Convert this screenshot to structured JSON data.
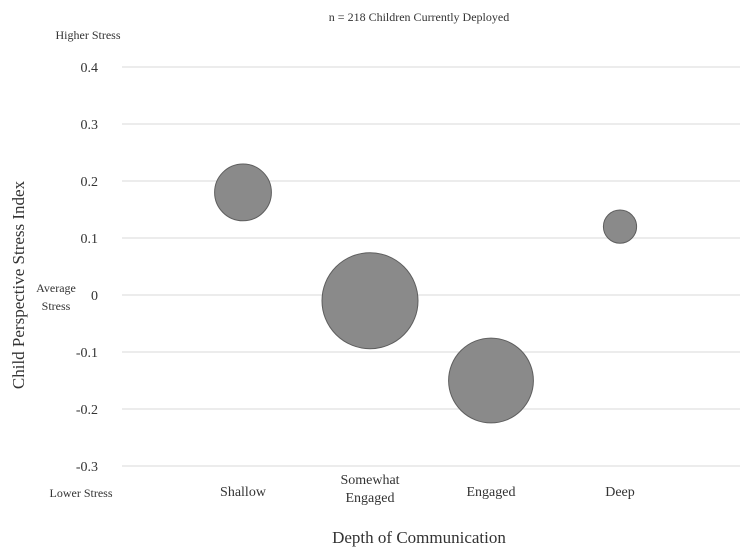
{
  "chart_data": {
    "type": "bubble",
    "title": "n = 218 Children Currently Deployed",
    "xlabel": "Depth of Communication",
    "ylabel": "Child Perspective Stress Index",
    "ylim": [
      -0.3,
      0.4
    ],
    "yticks": [
      "0.4",
      "0.3",
      "0.2",
      "0.1",
      "0",
      "-0.1",
      "-0.2",
      "-0.3"
    ],
    "grid": true,
    "annotations": {
      "top": "Higher Stress",
      "middle_line1": "Average",
      "middle_line2": "Stress",
      "bottom": "Lower Stress"
    },
    "categories": [
      {
        "line1": "Shallow",
        "line2": ""
      },
      {
        "line1": "Somewhat",
        "line2": "Engaged"
      },
      {
        "line1": "Engaged",
        "line2": ""
      },
      {
        "line1": "Deep",
        "line2": ""
      }
    ],
    "points": [
      {
        "y": 0.18,
        "size": 35
      },
      {
        "y": -0.01,
        "size": 100
      },
      {
        "y": -0.15,
        "size": 78
      },
      {
        "y": 0.12,
        "size": 12
      }
    ],
    "colors": {
      "bubble": "#8a8a8a",
      "bubble_edge": "#5e5e5e",
      "grid": "#d9d9d9"
    }
  }
}
